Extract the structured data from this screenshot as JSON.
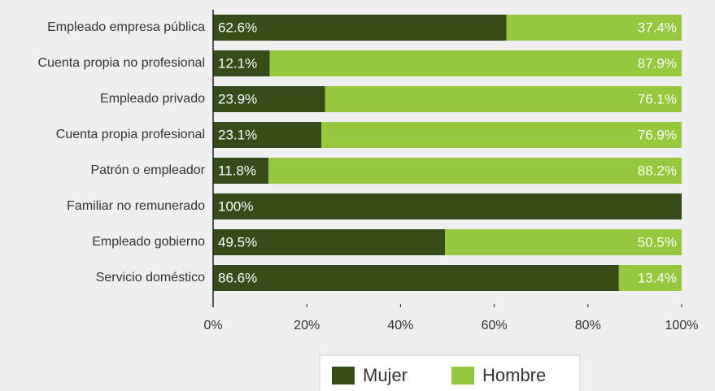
{
  "chart_data": {
    "type": "stacked-barh",
    "categories": [
      "Empleado empresa pública",
      "Cuenta propia no profesional",
      "Empleado privado",
      "Cuenta propia profesional",
      "Patrón o empleador",
      "Familiar no remunerado",
      "Empleado gobierno",
      "Servicio doméstico"
    ],
    "series": [
      {
        "name": "Mujer",
        "color": "#354c18",
        "values": [
          62.6,
          12.1,
          23.9,
          23.1,
          11.8,
          100,
          49.5,
          86.6
        ],
        "value_labels": [
          "62.6%",
          "12.1%",
          "23.9%",
          "23.1%",
          "11.8%",
          "100%",
          "49.5%",
          "86.6%"
        ]
      },
      {
        "name": "Hombre",
        "color": "#95c83f",
        "values": [
          37.4,
          87.9,
          76.1,
          76.9,
          88.2,
          0,
          50.5,
          13.4
        ],
        "value_labels": [
          "37.4%",
          "87.9%",
          "76.1%",
          "76.9%",
          "88.2%",
          null,
          "50.5%",
          "13.4%"
        ]
      }
    ],
    "xlim": [
      0,
      100
    ],
    "xticks": [
      {
        "value": 0,
        "label": "0%"
      },
      {
        "value": 20,
        "label": "20%"
      },
      {
        "value": 40,
        "label": "40%"
      },
      {
        "value": 60,
        "label": "60%"
      },
      {
        "value": 80,
        "label": "80%"
      },
      {
        "value": 100,
        "label": "100%"
      }
    ],
    "legend": "bottom"
  }
}
